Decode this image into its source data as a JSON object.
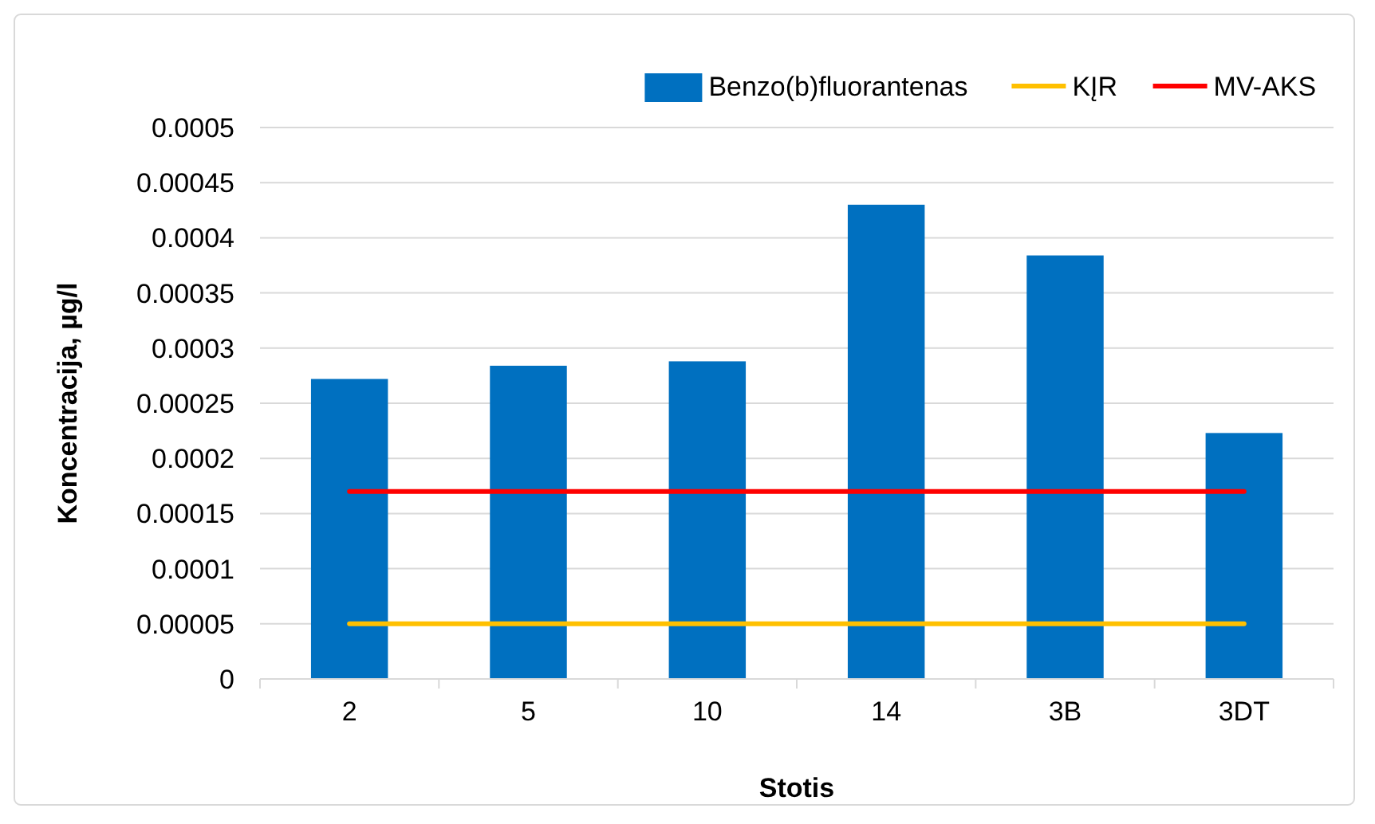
{
  "chart_data": {
    "type": "bar",
    "xlabel": "Stotis",
    "ylabel": "Koncentracija, µg/l",
    "categories": [
      "2",
      "5",
      "10",
      "14",
      "3B",
      "3DT"
    ],
    "series": [
      {
        "name": "Benzo(b)fluorantenas",
        "color": "#0070c0",
        "values": [
          0.000272,
          0.000284,
          0.000288,
          0.00043,
          0.000384,
          0.000223
        ]
      },
      {
        "name": "KĮR",
        "type": "line",
        "color": "#ffc000",
        "values": [
          5e-05,
          5e-05,
          5e-05,
          5e-05,
          5e-05,
          5e-05
        ]
      },
      {
        "name": "MV-AKS",
        "type": "line",
        "color": "#ff0000",
        "values": [
          0.00017,
          0.00017,
          0.00017,
          0.00017,
          0.00017,
          0.00017
        ]
      }
    ],
    "ylim": [
      0,
      0.0005
    ],
    "yticks": [
      0,
      {
        "value": 5e-05,
        "label": "0.00005"
      },
      0.0001,
      0.00015,
      0.0002,
      0.00025,
      0.0003,
      0.00035,
      0.0004,
      0.00045,
      0.0005
    ],
    "grid": "y",
    "legend": "top right",
    "line_style": "solid",
    "marker": "none"
  }
}
